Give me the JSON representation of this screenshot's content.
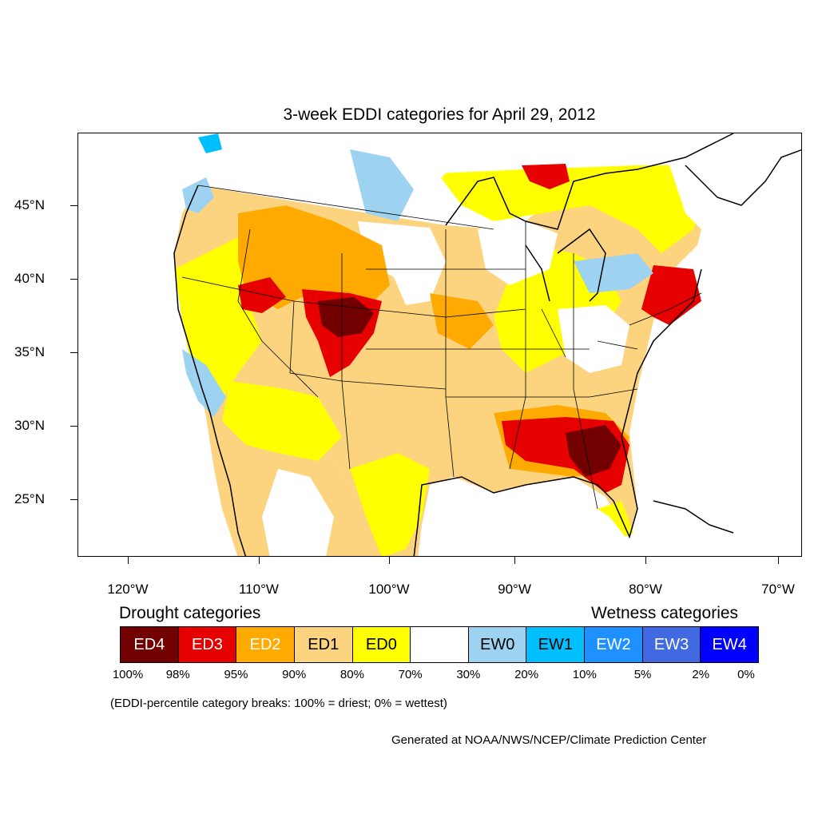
{
  "title": "3-week EDDI categories for April 29, 2012",
  "lat_labels": [
    "45°N",
    "40°N",
    "35°N",
    "30°N",
    "25°N"
  ],
  "lon_labels": [
    "120°W",
    "110°W",
    "100°W",
    "90°W",
    "80°W",
    "70°W"
  ],
  "drought_heading": "Drought categories",
  "wetness_heading": "Wetness categories",
  "legend": [
    {
      "label": "ED4",
      "color": "#730000",
      "text_color": "#ffffff"
    },
    {
      "label": "ED3",
      "color": "#e60000",
      "text_color": "#ffffff"
    },
    {
      "label": "ED2",
      "color": "#ffaa00",
      "text_color": "#ffffff"
    },
    {
      "label": "ED1",
      "color": "#fcd37f",
      "text_color": "#000000"
    },
    {
      "label": "ED0",
      "color": "#ffff00",
      "text_color": "#000000"
    },
    {
      "label": "",
      "color": "#ffffff",
      "text_color": "#000000"
    },
    {
      "label": "EW0",
      "color": "#9dd3f0",
      "text_color": "#000000"
    },
    {
      "label": "EW1",
      "color": "#00bfff",
      "text_color": "#000000"
    },
    {
      "label": "EW2",
      "color": "#1e90ff",
      "text_color": "#ffffff"
    },
    {
      "label": "EW3",
      "color": "#4169e1",
      "text_color": "#ffffff"
    },
    {
      "label": "EW4",
      "color": "#0000ff",
      "text_color": "#ffffff"
    }
  ],
  "percent_breaks": [
    "100%",
    "98%",
    "95%",
    "90%",
    "80%",
    "70%",
    "30%",
    "20%",
    "10%",
    "5%",
    "2%",
    "0%"
  ],
  "note": "(EDDI-percentile category breaks: 100% = driest; 0% = wettest)",
  "credit": "Generated at NOAA/NWS/NCEP/Climate Prediction Center"
}
